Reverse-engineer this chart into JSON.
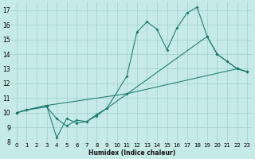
{
  "xlabel": "Humidex (Indice chaleur)",
  "bg_color": "#c5eae7",
  "grid_color": "#a8d5d1",
  "line_color": "#1a7a6e",
  "xlim": [
    -0.5,
    23.5
  ],
  "ylim": [
    8,
    17.5
  ],
  "xticks": [
    0,
    1,
    2,
    3,
    4,
    5,
    6,
    7,
    8,
    9,
    10,
    11,
    12,
    13,
    14,
    15,
    16,
    17,
    18,
    19,
    20,
    21,
    22,
    23
  ],
  "yticks": [
    8,
    9,
    10,
    11,
    12,
    13,
    14,
    15,
    16,
    17
  ],
  "line1_x": [
    0,
    1,
    3,
    4,
    5,
    6,
    7,
    8,
    9,
    11,
    12,
    13,
    14,
    15,
    16,
    17,
    18,
    19,
    20,
    21,
    22,
    23
  ],
  "line1_y": [
    10.0,
    10.2,
    10.4,
    9.6,
    9.1,
    9.5,
    9.4,
    9.8,
    10.3,
    12.5,
    15.5,
    16.2,
    15.7,
    14.3,
    15.8,
    16.8,
    17.2,
    15.2,
    14.0,
    13.5,
    13.0,
    12.8
  ],
  "line2_x": [
    0,
    3,
    11,
    22,
    23
  ],
  "line2_y": [
    10.0,
    10.5,
    11.3,
    13.0,
    12.8
  ],
  "line3_x": [
    0,
    1,
    3,
    4,
    5,
    6,
    7,
    8,
    9,
    19,
    20,
    22,
    23
  ],
  "line3_y": [
    10.0,
    10.2,
    10.5,
    8.3,
    9.6,
    9.3,
    9.4,
    9.9,
    10.3,
    15.2,
    14.0,
    13.0,
    12.8
  ]
}
